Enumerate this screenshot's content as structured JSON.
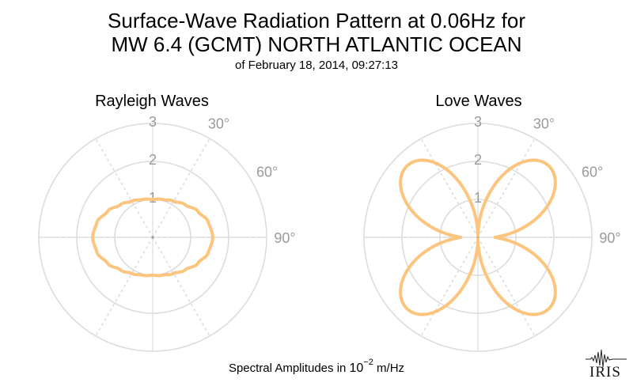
{
  "header": {
    "title_line1": "Surface-Wave Radiation Pattern at 0.06Hz for",
    "title_line2": "MW 6.4 (GCMT) NORTH ATLANTIC OCEAN",
    "date_line": "of February 18, 2014, 09:27:13"
  },
  "footer": {
    "label_prefix": "Spectral Amplitudes in ",
    "label_base": "10",
    "label_exp": "−2",
    "label_unit": " m/Hz"
  },
  "logo": {
    "text": "IRIS"
  },
  "colors": {
    "curve": "#fbc57e",
    "grid": "#dcdcdc",
    "tick_text": "#9a9a9a"
  },
  "chart_data": [
    {
      "type": "polar-line",
      "title": "Rayleigh Waves",
      "radial_ticks": [
        "1",
        "2",
        "3"
      ],
      "radial_range": [
        0,
        3
      ],
      "angle_ticks": [
        "30°",
        "60°",
        "90°"
      ],
      "angle_zero": "north",
      "grid": true,
      "series": [
        {
          "azimuth_deg": [
            0,
            15,
            30,
            45,
            60,
            75,
            90,
            105,
            120,
            135,
            150,
            165,
            180,
            195,
            210,
            225,
            240,
            255,
            270,
            285,
            300,
            315,
            330,
            345
          ],
          "amplitude": [
            1.0,
            1.03,
            1.1,
            1.21,
            1.37,
            1.52,
            1.58,
            1.52,
            1.37,
            1.21,
            1.1,
            1.03,
            1.0,
            1.03,
            1.1,
            1.21,
            1.37,
            1.52,
            1.58,
            1.52,
            1.37,
            1.21,
            1.1,
            1.03
          ]
        }
      ]
    },
    {
      "type": "polar-line",
      "title": "Love Waves",
      "radial_ticks": [
        "1",
        "2",
        "3"
      ],
      "radial_range": [
        0,
        3
      ],
      "angle_ticks": [
        "30°",
        "60°",
        "90°"
      ],
      "angle_zero": "north",
      "grid": true,
      "series": [
        {
          "lobe_azimuths_deg": [
            45,
            135,
            225,
            315
          ],
          "lobe_peak_amplitude": 2.65,
          "amplitude_at_0_deg": 0.05,
          "amplitude_at_90_deg": 0.45
        }
      ]
    }
  ]
}
